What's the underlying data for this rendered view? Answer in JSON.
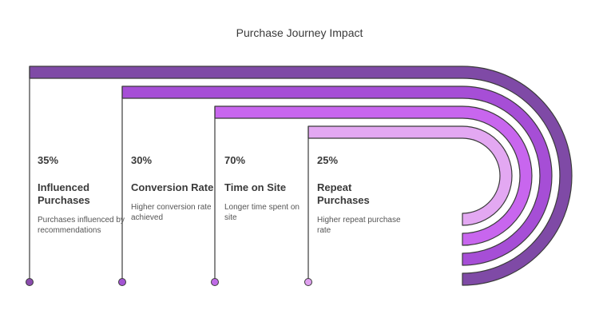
{
  "title": "Purchase Journey Impact",
  "colors": {
    "outline": "#3b3b3b",
    "band_1": "#7f4aa6",
    "band_2": "#a64ed6",
    "band_3": "#c866ee",
    "band_4": "#e3a8f2",
    "dot_1": "#8a4cad",
    "dot_2": "#a354d3",
    "dot_3": "#bf6ae6",
    "dot_4": "#dfa0ef"
  },
  "items": [
    {
      "value": "35%",
      "title": "Influenced Purchases",
      "description": "Purchases influenced by recommendations"
    },
    {
      "value": "30%",
      "title": "Conversion Rate",
      "description": "Higher conversion rate achieved"
    },
    {
      "value": "70%",
      "title": "Time on Site",
      "description": "Longer time spent on site"
    },
    {
      "value": "25%",
      "title": "Repeat Purchases",
      "description": "Higher repeat purchase rate"
    }
  ]
}
